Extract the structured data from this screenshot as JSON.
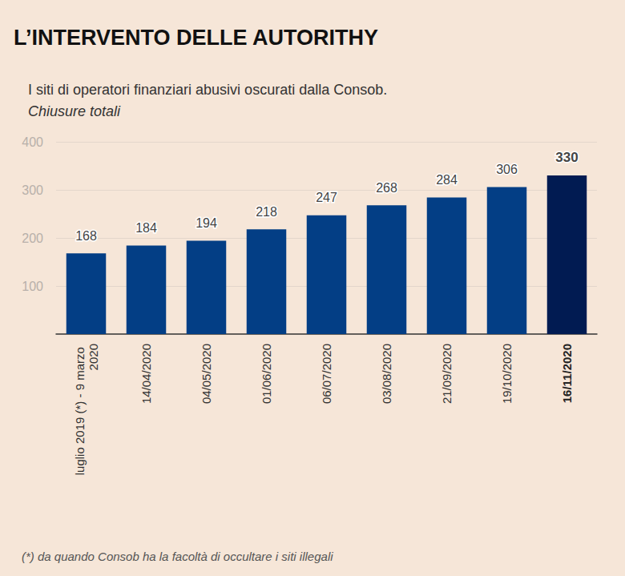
{
  "chart_data": {
    "type": "bar",
    "title": "L’INTERVENTO DELLE AUTORITHY",
    "subtitle": "I siti di operatori finanziari abusivi oscurati dalla Consob.",
    "ylabel": "Chiusure totali",
    "footnote": "(*) da quando Consob ha la facoltà di occultare i siti illegali",
    "categories": [
      "luglio 2019 (*) - 9 marzo 2020",
      "14/04/2020",
      "04/05/2020",
      "01/06/2020",
      "06/07/2020",
      "03/08/2020",
      "21/09/2020",
      "19/10/2020",
      "16/11/2020"
    ],
    "values": [
      168,
      184,
      194,
      218,
      247,
      268,
      284,
      306,
      330
    ],
    "colors": [
      "#033e85",
      "#033e85",
      "#033e85",
      "#033e85",
      "#033e85",
      "#033e85",
      "#033e85",
      "#033e85",
      "#011b52"
    ],
    "ylim": [
      0,
      400
    ],
    "yticks": [
      100,
      200,
      300,
      400
    ],
    "grid": true,
    "data_labels": true
  }
}
